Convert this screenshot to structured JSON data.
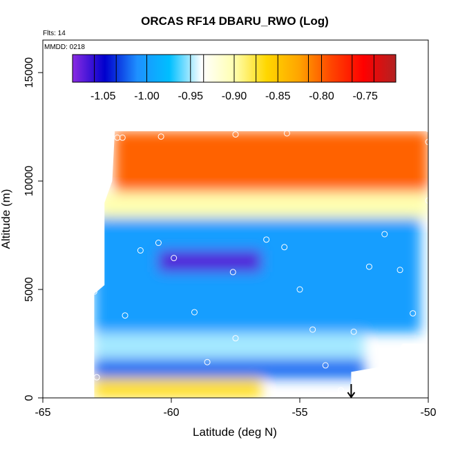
{
  "chart_data": {
    "type": "heatmap",
    "title": "ORCAS RF14 DBARU_RWO (Log)",
    "annotations": [
      "Flts: 14",
      "MMDD: 0218"
    ],
    "xlabel": "Latitude (deg N)",
    "ylabel": "Altitude (m)",
    "xlim": [
      -65,
      -50
    ],
    "ylim": [
      0,
      16500
    ],
    "x_ticks": [
      -65,
      -60,
      -55,
      -50
    ],
    "x_tick_labels": [
      "-65",
      "-60",
      "-55",
      "-50"
    ],
    "y_ticks": [
      0,
      5000,
      10000,
      15000
    ],
    "y_tick_labels": [
      "0",
      "5000",
      "10000",
      "15000"
    ],
    "colorbar": {
      "range": [
        -1.085,
        -0.715
      ],
      "boundaries": [
        -1.085,
        -1.06,
        -1.035,
        -1.0,
        -0.95,
        -0.935,
        -0.9,
        -0.875,
        -0.85,
        -0.815,
        -0.8,
        -0.765,
        -0.74,
        -0.715
      ],
      "tick_values": [
        -1.05,
        -1.0,
        -0.95,
        -0.9,
        -0.85,
        -0.8,
        -0.75
      ],
      "tick_labels": [
        "-1.05",
        "-1.00",
        "-0.95",
        "-0.90",
        "-0.85",
        "-0.80",
        "-0.75"
      ],
      "colors": [
        "#8a2be2",
        "#0000cd",
        "#1e90ff",
        "#00bfff",
        "#ffffff",
        "#ffffb0",
        "#ffd700",
        "#ffa500",
        "#ff4500",
        "#ff0000",
        "#b22222"
      ]
    },
    "regions": [
      {
        "name": "upper-warm",
        "lat_range": [
          -62.2,
          -50
        ],
        "alt_range": [
          9500,
          12300
        ],
        "value": -0.8
      },
      {
        "name": "transition",
        "lat_range": [
          -62.8,
          -50
        ],
        "alt_range": [
          8300,
          9500
        ],
        "value": -0.9
      },
      {
        "name": "mid-blue",
        "lat_range": [
          -63,
          -50.3
        ],
        "alt_range": [
          3000,
          8300
        ],
        "value": -1.0
      },
      {
        "name": "deep-core",
        "lat_range": [
          -60.5,
          -56.5
        ],
        "alt_range": [
          5800,
          6800
        ],
        "value": -1.07
      },
      {
        "name": "low-light",
        "lat_range": [
          -63,
          -52.5
        ],
        "alt_range": [
          1800,
          3000
        ],
        "value": -0.95
      },
      {
        "name": "lower-blue",
        "lat_range": [
          -63,
          -52.5
        ],
        "alt_range": [
          900,
          1800
        ],
        "value": -1.02
      },
      {
        "name": "surface-yellow",
        "lat_range": [
          -63,
          -56.5
        ],
        "alt_range": [
          0,
          900
        ],
        "value": -0.87
      }
    ],
    "points": [
      {
        "x": -62.1,
        "y": 12000
      },
      {
        "x": -61.9,
        "y": 12000
      },
      {
        "x": -60.4,
        "y": 12050
      },
      {
        "x": -57.5,
        "y": 12150
      },
      {
        "x": -55.5,
        "y": 12200
      },
      {
        "x": -50,
        "y": 12400
      },
      {
        "x": -50,
        "y": 11800
      },
      {
        "x": -50,
        "y": 9100
      },
      {
        "x": -61.2,
        "y": 6800
      },
      {
        "x": -60.5,
        "y": 7150
      },
      {
        "x": -59.9,
        "y": 6450
      },
      {
        "x": -57.6,
        "y": 5800
      },
      {
        "x": -56.3,
        "y": 7300
      },
      {
        "x": -55.6,
        "y": 6950
      },
      {
        "x": -51.7,
        "y": 7550
      },
      {
        "x": -52.3,
        "y": 6050
      },
      {
        "x": -51.1,
        "y": 5900
      },
      {
        "x": -63,
        "y": 4900
      },
      {
        "x": -61.8,
        "y": 3800
      },
      {
        "x": -59.1,
        "y": 3950
      },
      {
        "x": -55,
        "y": 5000
      },
      {
        "x": -54.5,
        "y": 3150
      },
      {
        "x": -52.9,
        "y": 3050
      },
      {
        "x": -50.6,
        "y": 3900
      },
      {
        "x": -57.5,
        "y": 2750
      },
      {
        "x": -58.6,
        "y": 1650
      },
      {
        "x": -54,
        "y": 1500
      },
      {
        "x": -50,
        "y": 2200
      },
      {
        "x": -62.9,
        "y": 950
      },
      {
        "x": -53.4,
        "y": 350
      }
    ],
    "marker_arrow_x": -53
  }
}
